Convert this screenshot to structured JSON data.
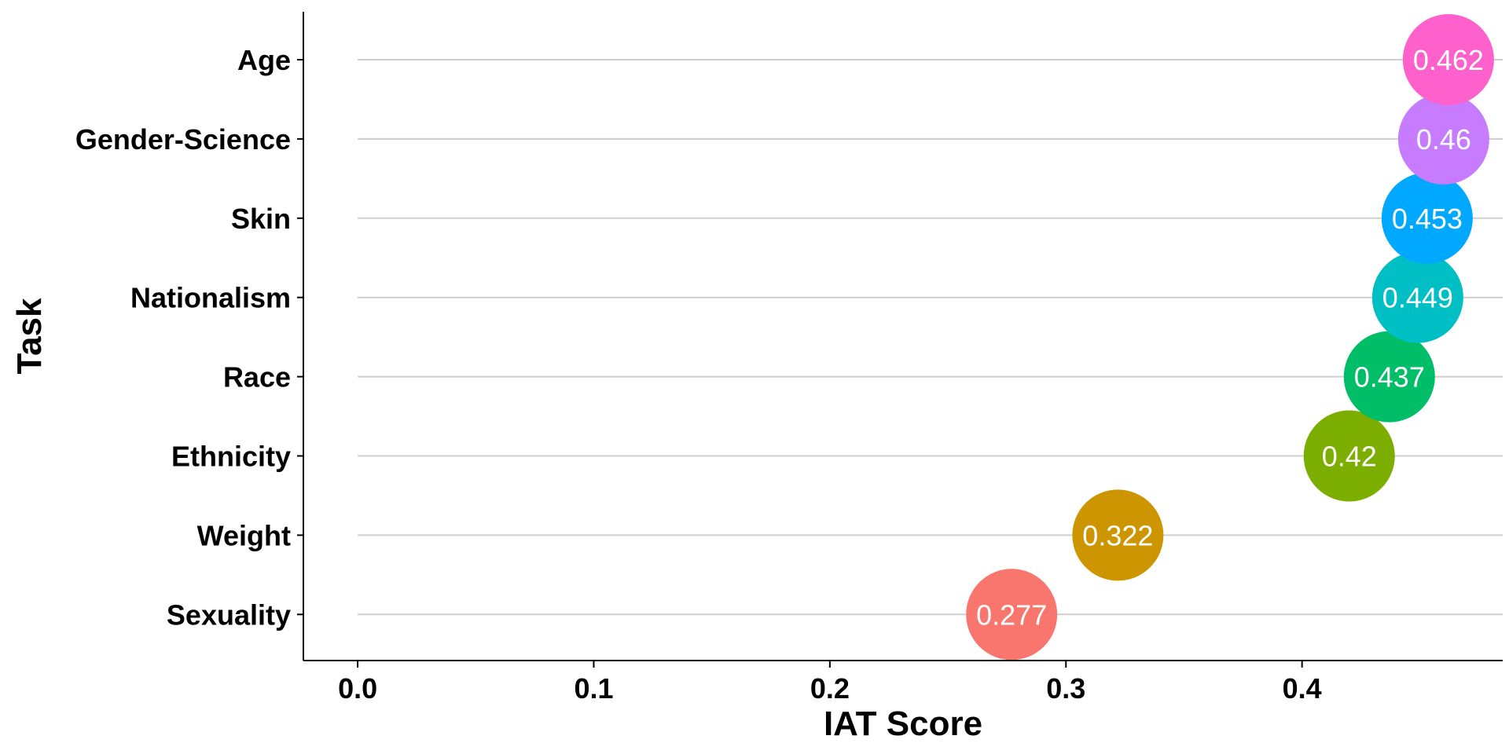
{
  "chart_data": {
    "type": "scatter",
    "xlabel": "IAT Score",
    "ylabel": "Task",
    "xlim": [
      -0.023,
      0.485
    ],
    "x_ticks": [
      "0.0",
      "0.1",
      "0.2",
      "0.3",
      "0.4"
    ],
    "x_tick_values": [
      0.0,
      0.1,
      0.2,
      0.3,
      0.4
    ],
    "categories": [
      "Sexuality",
      "Weight",
      "Ethnicity",
      "Race",
      "Nationalism",
      "Skin",
      "Gender-Science",
      "Age"
    ],
    "values": [
      0.277,
      0.322,
      0.42,
      0.437,
      0.449,
      0.453,
      0.46,
      0.462
    ],
    "labels": [
      "0.277",
      "0.322",
      "0.42",
      "0.437",
      "0.449",
      "0.453",
      "0.46",
      "0.462"
    ],
    "colors": [
      "#F8766D",
      "#CD9600",
      "#7CAE00",
      "#00BE67",
      "#00BFC4",
      "#00A9FF",
      "#C77CFF",
      "#FF61CC"
    ],
    "grid": "horizontal",
    "legend": "none",
    "point_style": "large-circle-with-value"
  }
}
